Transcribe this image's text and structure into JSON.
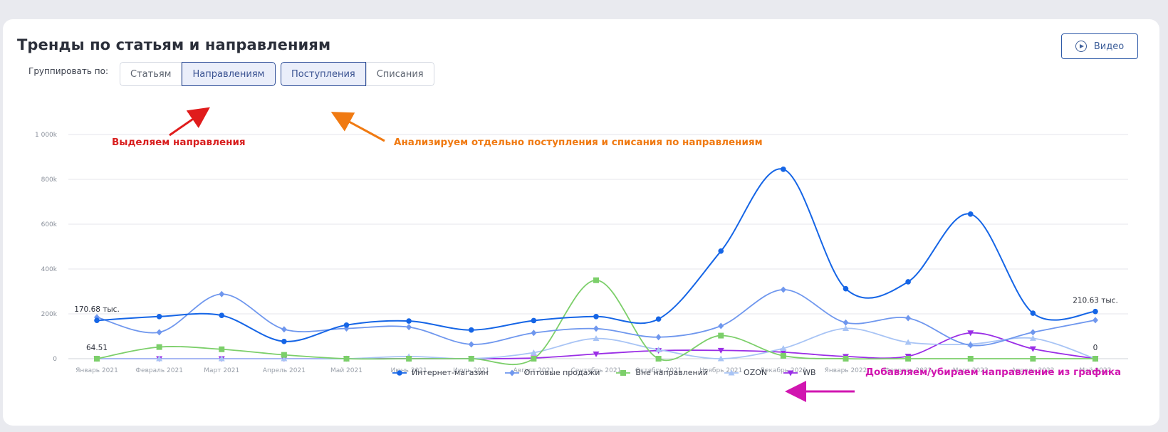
{
  "title": "Тренды по статьям и направлениям",
  "video_button": {
    "label": "Видео",
    "icon": "play-circle-icon"
  },
  "grouping": {
    "label": "Группировать по:",
    "options": [
      "Статьям",
      "Направлениям"
    ],
    "selected": "Направлениям"
  },
  "flow": {
    "options": [
      "Поступления",
      "Списания"
    ],
    "selected": "Поступления"
  },
  "annotations": {
    "groups": "Выделяем направления",
    "flows": "Анализируем отдельно поступления и списания по направлениям",
    "legend": "Добавляем/убираем направление из графика"
  },
  "chart_data": {
    "type": "line",
    "categories": [
      "Январь 2021",
      "Февраль 2021",
      "Март 2021",
      "Апрель 2021",
      "Май 2021",
      "Июнь 2021",
      "Июль 2021",
      "Август 2021",
      "Сентябрь 2021",
      "Октябрь 2021",
      "Ноябрь 2021",
      "Декабрь 2021",
      "Январь 2022",
      "Февраль 2022",
      "Март 2022",
      "Апрель 2022",
      "Май 2022"
    ],
    "ylim": [
      0,
      1000000
    ],
    "yticks": [
      0,
      200000,
      400000,
      600000,
      800000,
      1000000
    ],
    "ytick_labels": [
      "0",
      "200k",
      "400k",
      "600k",
      "800k",
      "1 000k"
    ],
    "grid": true,
    "legend_position": "bottom",
    "series": [
      {
        "name": "Интернет-магазин",
        "color": "#1565e6",
        "marker": "circle",
        "values": [
          170680,
          188000,
          193000,
          77000,
          150000,
          168000,
          128000,
          170000,
          188000,
          177000,
          480000,
          845000,
          312000,
          343000,
          645000,
          203000,
          210630
        ]
      },
      {
        "name": "Оптовые продажи",
        "color": "#6f97ee",
        "marker": "diamond",
        "values": [
          185000,
          118000,
          288000,
          131000,
          135000,
          141000,
          64000,
          115000,
          134000,
          96000,
          146000,
          308000,
          161000,
          181000,
          60000,
          118000,
          172000
        ]
      },
      {
        "name": "Вне направлений",
        "color": "#7ccf6a",
        "marker": "square",
        "values": [
          64.51,
          52000,
          42000,
          17000,
          0,
          0,
          0,
          0,
          350000,
          0,
          103000,
          13000,
          0,
          0,
          0,
          0,
          0
        ]
      },
      {
        "name": "OZON",
        "color": "#a8c4f5",
        "marker": "triangle",
        "values": [
          0,
          0,
          0,
          0,
          0,
          10000,
          0,
          27000,
          90000,
          40000,
          0,
          46000,
          135000,
          73000,
          65000,
          91000,
          0
        ]
      },
      {
        "name": "WB",
        "color": "#9a2ee6",
        "marker": "triangle-down",
        "values": [
          0,
          0,
          0,
          0,
          0,
          0,
          0,
          3000,
          21000,
          36000,
          37000,
          29000,
          10000,
          11000,
          115000,
          44000,
          0
        ]
      }
    ],
    "data_labels": [
      {
        "text": "170.68 тыс.",
        "series": "Интернет-магазин",
        "category": "Январь 2021"
      },
      {
        "text": "64.51",
        "series": "Вне направлений",
        "category": "Январь 2021"
      },
      {
        "text": "210.63 тыс.",
        "series": "Интернет-магазин",
        "category": "Май 2022"
      },
      {
        "text": "0",
        "series": "OZON",
        "category": "Май 2022"
      }
    ]
  }
}
